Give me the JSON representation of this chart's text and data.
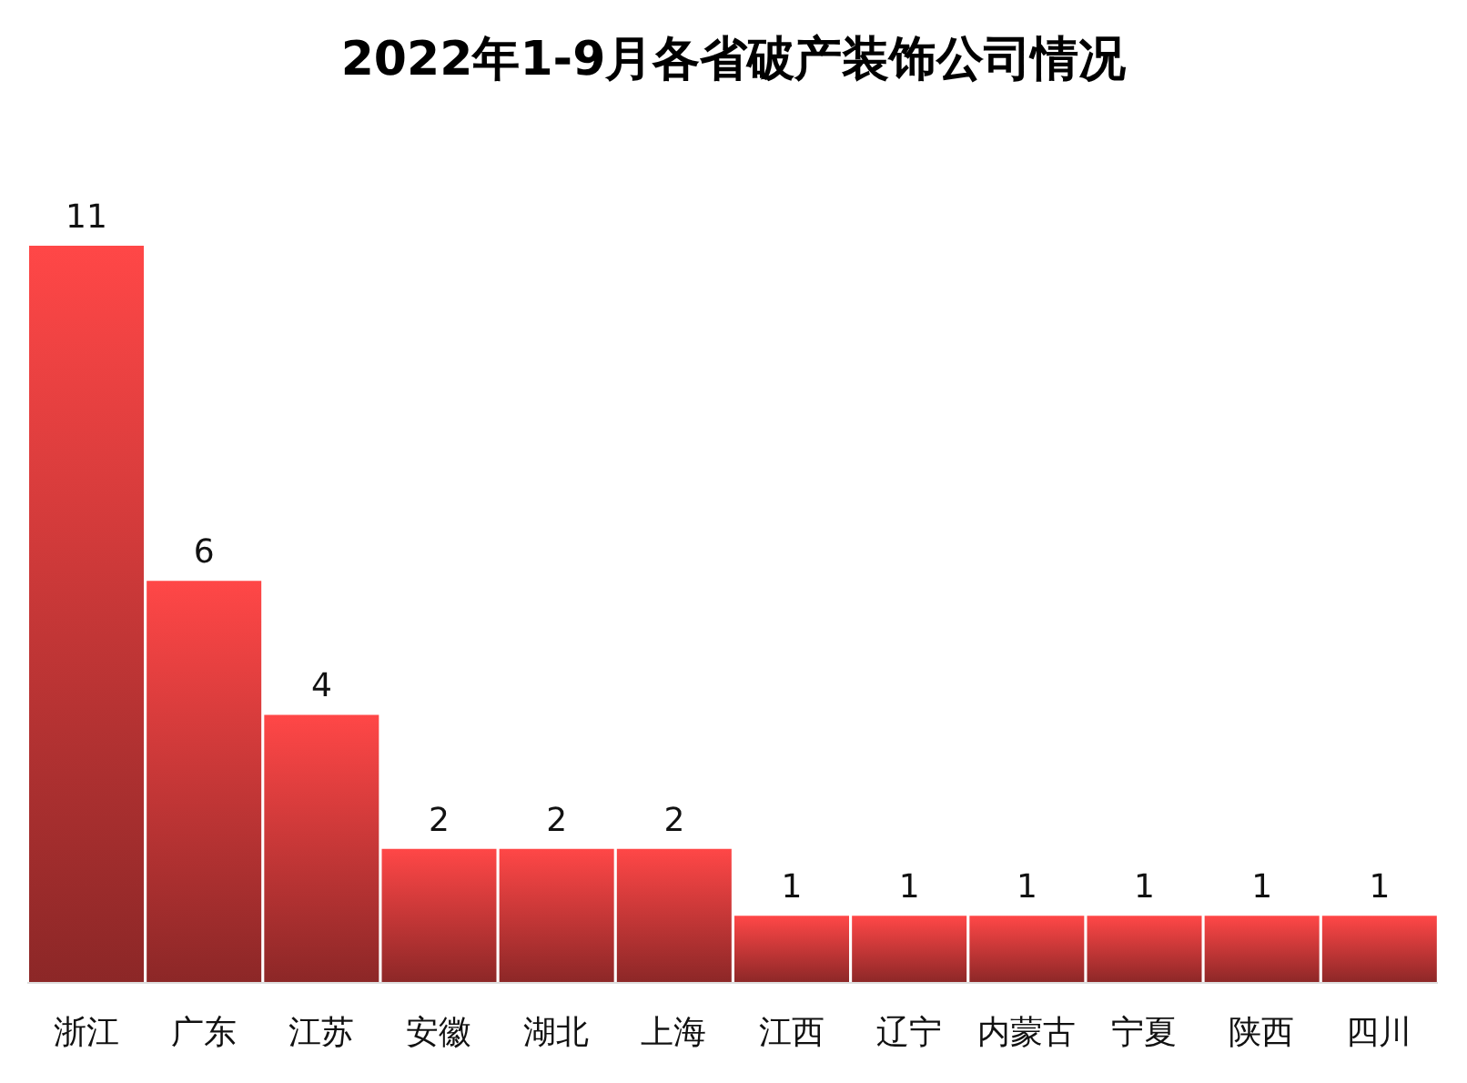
{
  "chart_data": {
    "type": "bar",
    "title": "2022年1-9月各省破产装饰公司情况",
    "categories": [
      "浙江",
      "广东",
      "江苏",
      "安徽",
      "湖北",
      "上海",
      "江西",
      "辽宁",
      "内蒙古",
      "宁夏",
      "陕西",
      "四川"
    ],
    "values": [
      11,
      6,
      4,
      2,
      2,
      2,
      1,
      1,
      1,
      1,
      1,
      1
    ],
    "color": "#ff4747",
    "data_labels": true
  }
}
